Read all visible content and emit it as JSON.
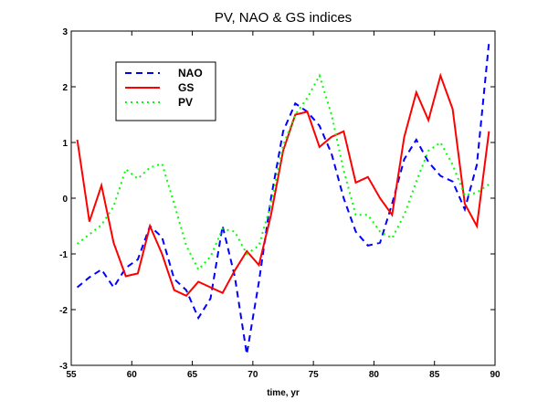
{
  "chart_data": {
    "type": "line",
    "title": "PV, NAO & GS indices",
    "xlabel": "time, yr",
    "ylabel": "",
    "xlim": [
      55,
      90
    ],
    "ylim": [
      -3,
      3
    ],
    "xticks": [
      55,
      60,
      65,
      70,
      75,
      80,
      85,
      90
    ],
    "yticks": [
      -3,
      -2,
      -1,
      0,
      1,
      2,
      3
    ],
    "grid": false,
    "legend_position": "top-left",
    "x": [
      55.5,
      56.5,
      57.5,
      58.5,
      59.5,
      60.5,
      61.5,
      62.5,
      63.5,
      64.5,
      65.5,
      66.5,
      67.5,
      68.5,
      69.5,
      70.5,
      71.5,
      72.5,
      73.5,
      74.5,
      75.5,
      76.5,
      77.5,
      78.5,
      79.5,
      80.5,
      81.5,
      82.5,
      83.5,
      84.5,
      85.5,
      86.5,
      87.5,
      88.5,
      89.5
    ],
    "series": [
      {
        "name": "NAO",
        "color": "#0000ff",
        "style": "dashed",
        "values": [
          -1.6,
          -1.42,
          -1.28,
          -1.6,
          -1.25,
          -1.1,
          -0.5,
          -0.7,
          -1.45,
          -1.65,
          -2.15,
          -1.8,
          -0.5,
          -1.4,
          -2.8,
          -1.5,
          0.0,
          1.2,
          1.7,
          1.55,
          1.3,
          0.8,
          0.0,
          -0.6,
          -0.85,
          -0.8,
          -0.1,
          0.7,
          1.05,
          0.65,
          0.4,
          0.3,
          -0.2,
          0.6,
          2.8
        ]
      },
      {
        "name": "GS",
        "color": "#ff0000",
        "style": "solid",
        "values": [
          1.05,
          -0.42,
          0.23,
          -0.8,
          -1.4,
          -1.35,
          -0.5,
          -1.0,
          -1.65,
          -1.75,
          -1.5,
          -1.6,
          -1.7,
          -1.3,
          -0.95,
          -1.2,
          -0.3,
          0.85,
          1.5,
          1.55,
          0.92,
          1.1,
          1.2,
          0.28,
          0.38,
          0.0,
          -0.3,
          1.1,
          1.9,
          1.4,
          2.2,
          1.6,
          -0.1,
          -0.5,
          1.2
        ]
      },
      {
        "name": "PV",
        "color": "#00ff00",
        "style": "dotted",
        "values": [
          -0.82,
          -0.65,
          -0.48,
          -0.15,
          0.52,
          0.35,
          0.55,
          0.62,
          -0.1,
          -0.85,
          -1.28,
          -1.05,
          -0.55,
          -0.6,
          -1.0,
          -0.85,
          -0.1,
          0.95,
          1.5,
          1.8,
          2.2,
          1.5,
          0.5,
          -0.3,
          -0.3,
          -0.6,
          -0.72,
          -0.3,
          0.3,
          0.85,
          1.0,
          0.6,
          0.05,
          0.1,
          0.25
        ]
      }
    ]
  }
}
